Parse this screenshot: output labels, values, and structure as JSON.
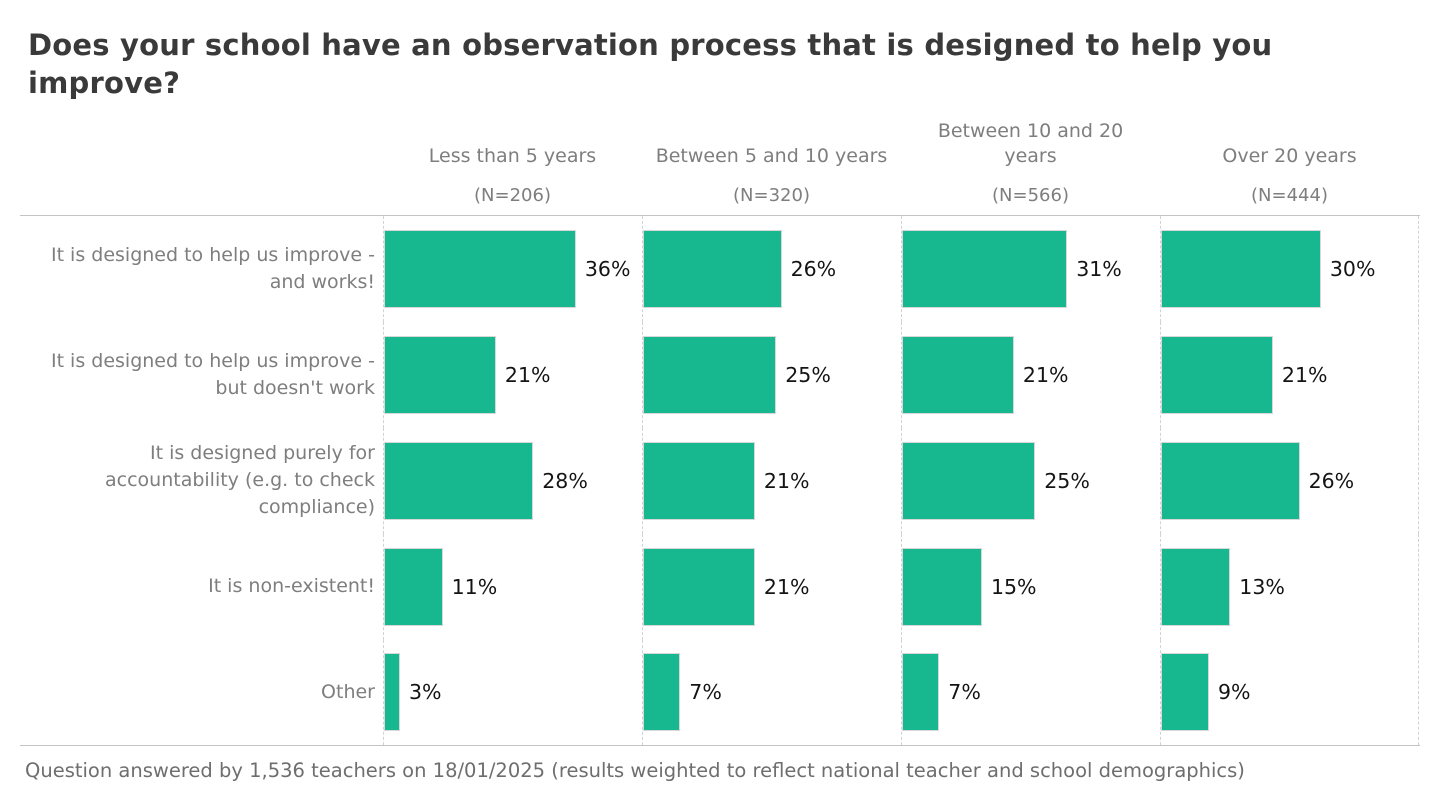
{
  "title": "Does your school have an observation process that is designed to help you improve?",
  "footer": "Question answered by 1,536 teachers on 18/01/2025 (results weighted to reflect national teacher and school demographics)",
  "colors": {
    "bar": "#17B890",
    "bar_border": "#D8D8D8",
    "title_text": "#3A3A3A",
    "muted_text": "#7E7E7E",
    "value_text": "#141414",
    "footer_text": "#6E6E6E",
    "grid_line": "#C4C4C4",
    "dashed_line": "#D2D2D2"
  },
  "chart_data": {
    "type": "bar",
    "orientation": "horizontal",
    "unit": "%",
    "value_labels": true,
    "legend": "none",
    "grid": "dashed-column-separators",
    "xlim": [
      0,
      47
    ],
    "title": "Does your school have an observation process that is designed to help you improve?",
    "categories": [
      "It is designed to help us improve - and works!",
      "It is designed to help us improve - but doesn't work",
      "It is designed purely for accountability (e.g. to check compliance)",
      "It is non-existent!",
      "Other"
    ],
    "series": [
      {
        "name": "Less than 5 years",
        "n_label": "(N=206)",
        "values": [
          36,
          21,
          28,
          11,
          3
        ]
      },
      {
        "name": "Between 5 and 10 years",
        "n_label": "(N=320)",
        "values": [
          26,
          25,
          21,
          21,
          7
        ]
      },
      {
        "name": "Between 10 and 20 years",
        "n_label": "(N=566)",
        "values": [
          31,
          21,
          25,
          15,
          7
        ]
      },
      {
        "name": "Over 20 years",
        "n_label": "(N=444)",
        "values": [
          30,
          21,
          26,
          13,
          9
        ]
      }
    ]
  }
}
